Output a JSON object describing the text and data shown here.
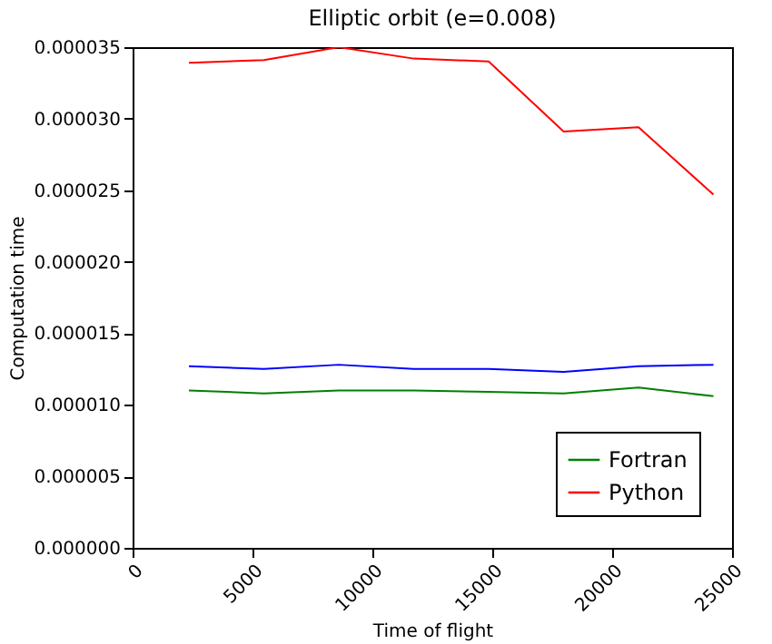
{
  "chart_data": {
    "type": "line",
    "title": "Elliptic orbit (e=0.008)",
    "xlabel": "Time of flight",
    "ylabel": "Computation time",
    "x": [
      2350,
      5475,
      8600,
      11725,
      14850,
      17975,
      21100,
      24225
    ],
    "series": [
      {
        "color": "#0000ff",
        "values": [
          1.27e-05,
          1.25e-05,
          1.28e-05,
          1.25e-05,
          1.25e-05,
          1.23e-05,
          1.27e-05,
          1.28e-05
        ]
      },
      {
        "name": "Fortran",
        "color": "#008000",
        "values": [
          1.1e-05,
          1.08e-05,
          1.1e-05,
          1.1e-05,
          1.09e-05,
          1.08e-05,
          1.12e-05,
          1.06e-05
        ]
      },
      {
        "name": "Python",
        "color": "#ff0000",
        "values": [
          3.39e-05,
          3.41e-05,
          3.5e-05,
          3.42e-05,
          3.4e-05,
          2.91e-05,
          2.94e-05,
          2.47e-05
        ]
      }
    ],
    "xlim": [
      0,
      25000
    ],
    "xticks": [
      0,
      5000,
      10000,
      15000,
      20000,
      25000
    ],
    "ylim": [
      0,
      3.5e-05
    ],
    "yticks": [
      {
        "value": 0,
        "label": "0.000000"
      },
      {
        "value": 5e-06,
        "label": "0.000005"
      },
      {
        "value": 1e-05,
        "label": "0.000010"
      },
      {
        "value": 1.5e-05,
        "label": "0.000015"
      },
      {
        "value": 2e-05,
        "label": "0.000020"
      },
      {
        "value": 2.5e-05,
        "label": "0.000025"
      },
      {
        "value": 3e-05,
        "label": "0.000030"
      },
      {
        "value": 3.5e-05,
        "label": "0.000035"
      }
    ],
    "grid": false,
    "legend": "bottom right",
    "marker": "none",
    "line_style": "solid"
  }
}
